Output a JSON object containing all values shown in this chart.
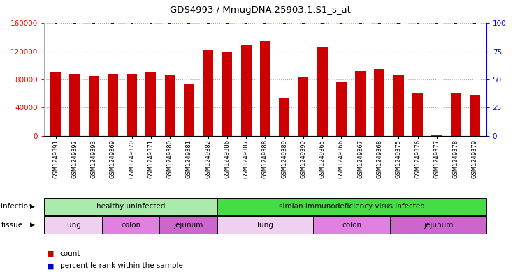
{
  "title": "GDS4993 / MmugDNA.25903.1.S1_s_at",
  "samples": [
    "GSM1249391",
    "GSM1249392",
    "GSM1249393",
    "GSM1249369",
    "GSM1249370",
    "GSM1249371",
    "GSM1249380",
    "GSM1249381",
    "GSM1249382",
    "GSM1249386",
    "GSM1249387",
    "GSM1249388",
    "GSM1249389",
    "GSM1249390",
    "GSM1249365",
    "GSM1249366",
    "GSM1249367",
    "GSM1249368",
    "GSM1249375",
    "GSM1249376",
    "GSM1249377",
    "GSM1249378",
    "GSM1249379"
  ],
  "counts": [
    91000,
    88000,
    85000,
    88000,
    88000,
    91000,
    86000,
    73000,
    122000,
    120000,
    130000,
    135000,
    54000,
    83000,
    127000,
    77000,
    92000,
    95000,
    87000,
    60000,
    1000,
    60000,
    58000
  ],
  "percentiles": [
    100,
    100,
    100,
    100,
    100,
    100,
    100,
    100,
    100,
    100,
    100,
    100,
    100,
    100,
    100,
    100,
    100,
    100,
    100,
    100,
    100,
    100,
    100
  ],
  "bar_color": "#cc0000",
  "dot_color": "#0000cc",
  "ylim_left": [
    0,
    160000
  ],
  "ylim_right": [
    0,
    100
  ],
  "yticks_left": [
    0,
    40000,
    80000,
    120000,
    160000
  ],
  "yticks_right": [
    0,
    25,
    50,
    75,
    100
  ],
  "infection_groups": [
    {
      "label": "healthy uninfected",
      "start": 0,
      "end": 9,
      "color": "#aaeaaa"
    },
    {
      "label": "simian immunodeficiency virus infected",
      "start": 9,
      "end": 23,
      "color": "#44dd44"
    }
  ],
  "tissue_groups": [
    {
      "label": "lung",
      "start": 0,
      "end": 3,
      "color": "#f0d0f0"
    },
    {
      "label": "colon",
      "start": 3,
      "end": 6,
      "color": "#e080e0"
    },
    {
      "label": "jejunum",
      "start": 6,
      "end": 9,
      "color": "#cc66cc"
    },
    {
      "label": "lung",
      "start": 9,
      "end": 14,
      "color": "#f0d0f0"
    },
    {
      "label": "colon",
      "start": 14,
      "end": 18,
      "color": "#e080e0"
    },
    {
      "label": "jejunum",
      "start": 18,
      "end": 23,
      "color": "#cc66cc"
    }
  ],
  "infection_label": "infection",
  "tissue_label": "tissue",
  "legend_count_label": "count",
  "legend_percentile_label": "percentile rank within the sample",
  "background_color": "#ffffff",
  "grid_color": "#aaaaaa"
}
